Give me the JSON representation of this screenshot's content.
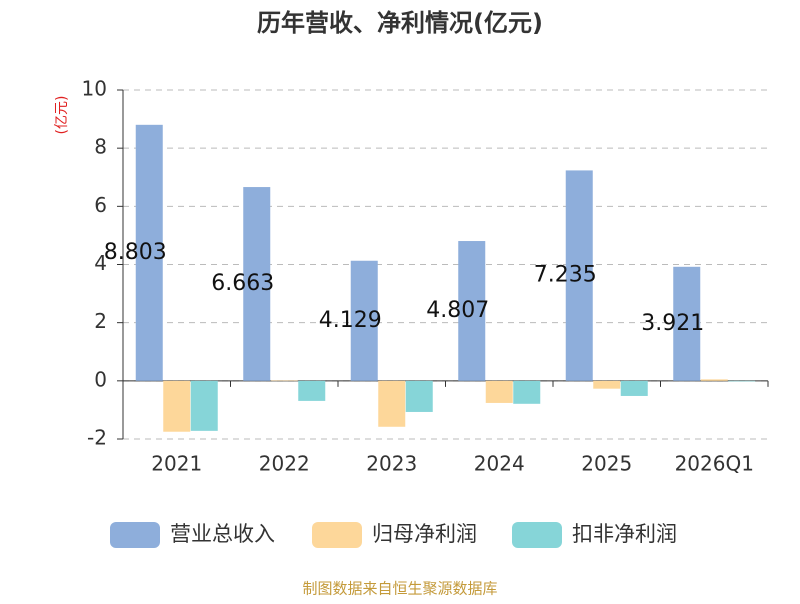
{
  "chart_data": {
    "type": "bar",
    "title": "历年营收、净利情况(亿元)",
    "y_label": "(亿元)",
    "categories": [
      "2021",
      "2022",
      "2023",
      "2024",
      "2025",
      "2026Q1"
    ],
    "series": [
      {
        "name": "营业总收入",
        "color": "#8eaedb",
        "values": [
          8.803,
          6.663,
          4.129,
          4.807,
          7.235,
          3.921
        ]
      },
      {
        "name": "归母净利润",
        "color": "#fdd79a",
        "values": [
          -1.75,
          0.01,
          -1.58,
          -0.76,
          -0.27,
          0.05
        ]
      },
      {
        "name": "扣非净利润",
        "color": "#86d5d8",
        "values": [
          -1.72,
          -0.69,
          -1.07,
          -0.79,
          -0.52,
          -0.02
        ]
      }
    ],
    "ylim": [
      -2,
      10
    ],
    "yticks": [
      -2,
      0,
      2,
      4,
      6,
      8,
      10
    ],
    "grid": true,
    "legend": "bottom",
    "source": "制图数据来自恒生聚源数据库"
  }
}
